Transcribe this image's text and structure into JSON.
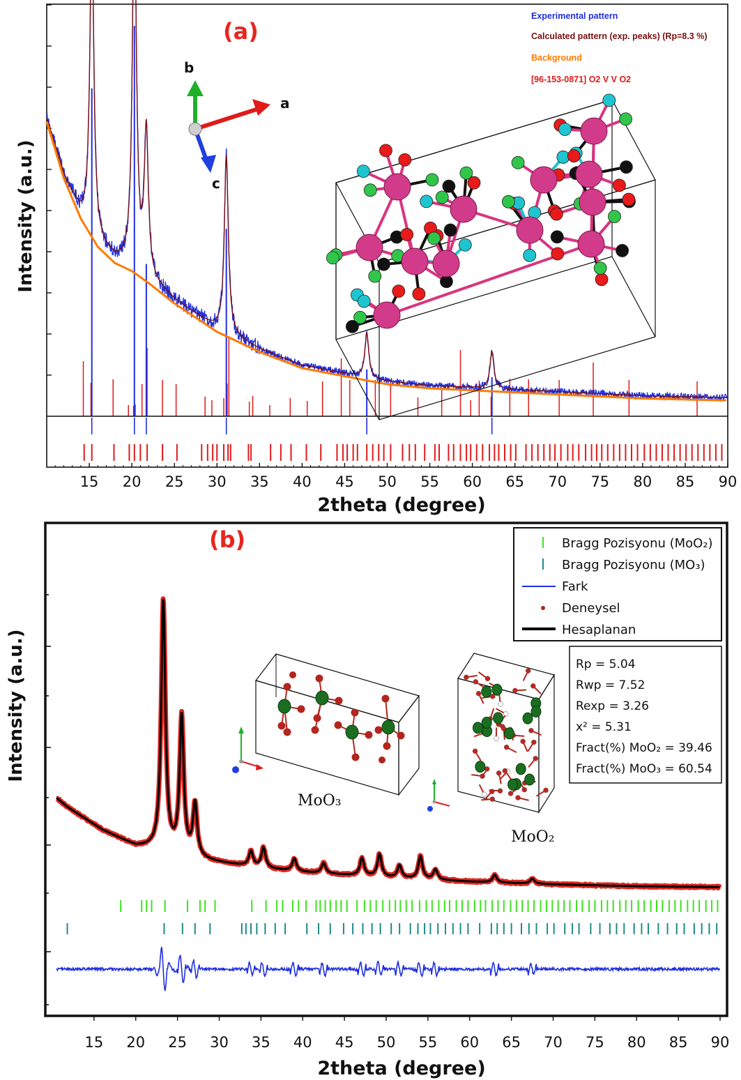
{
  "chart_data": [
    {
      "type": "line",
      "panel_label": "(a)",
      "xlabel": "2theta (degree)",
      "ylabel": "Intensity (a.u.)",
      "xlim": [
        10,
        90
      ],
      "x_ticks": [
        15,
        20,
        25,
        30,
        35,
        40,
        45,
        50,
        55,
        60,
        65,
        70,
        75,
        80,
        85,
        90
      ],
      "legend_position": "top-right",
      "legend": [
        {
          "label": "Experimental pattern",
          "color": "#1f2fe0"
        },
        {
          "label": "Calculated pattern (exp. peaks) (Rp=8.3 %)",
          "color": "#7a1010"
        },
        {
          "label": "Background",
          "color": "#ff7a00"
        },
        {
          "label": "[96-153-0871] O2 V V O2",
          "color": "#e01a1a"
        }
      ],
      "peaks": [
        {
          "x": 15.3,
          "relative_intensity": 0.84
        },
        {
          "x": 20.3,
          "relative_intensity": 1.0
        },
        {
          "x": 21.7,
          "relative_intensity": 0.39
        },
        {
          "x": 31.1,
          "relative_intensity": 0.48
        },
        {
          "x": 47.6,
          "relative_intensity": 0.12
        },
        {
          "x": 62.3,
          "relative_intensity": 0.1
        }
      ],
      "background": [
        [
          10,
          0.71
        ],
        [
          12,
          0.57
        ],
        [
          14,
          0.47
        ],
        [
          16,
          0.4
        ],
        [
          18,
          0.36
        ],
        [
          20,
          0.34
        ],
        [
          22,
          0.31
        ],
        [
          25,
          0.26
        ],
        [
          30,
          0.19
        ],
        [
          35,
          0.14
        ],
        [
          40,
          0.1
        ],
        [
          45,
          0.08
        ],
        [
          50,
          0.06
        ],
        [
          55,
          0.05
        ],
        [
          60,
          0.045
        ],
        [
          70,
          0.035
        ],
        [
          80,
          0.025
        ],
        [
          90,
          0.02
        ]
      ],
      "reference_lines_x": [
        14.3,
        15.2,
        17.8,
        19.6,
        20.2,
        20.4,
        21.2,
        21.8,
        23.6,
        25.2,
        28.6,
        29.4,
        30.8,
        31.2,
        31.4,
        33.8,
        34.2,
        36.2,
        38.6,
        40.6,
        42.4,
        44.6,
        45.6,
        47.6,
        48.6,
        50.4,
        53.6,
        56.4,
        58.6,
        59.8,
        60.8,
        62.2,
        64.4,
        66.6,
        70.2,
        74.2,
        78.4,
        86.4
      ],
      "bragg_ticks_x": [
        14.4,
        15.3,
        17.9,
        19.7,
        20.3,
        21.0,
        21.8,
        23.6,
        25.3,
        28.2,
        28.9,
        29.5,
        30.0,
        30.8,
        31.3,
        31.6,
        33.7,
        34.0,
        36.3,
        37.5,
        38.7,
        40.5,
        42.2,
        44.1,
        44.8,
        45.3,
        46.0,
        46.5,
        47.6,
        48.3,
        49.0,
        49.6,
        50.4,
        51.8,
        52.6,
        53.3,
        54.4,
        55.6,
        56.1,
        57.2,
        57.8,
        58.6,
        59.3,
        59.8,
        60.5,
        61.2,
        62.0,
        62.6,
        63.1,
        63.8,
        64.5,
        65.1,
        66.3,
        67.0,
        67.7,
        68.4,
        69.1,
        69.7,
        70.4,
        71.2,
        71.8,
        72.5,
        73.3,
        74.0,
        74.6,
        75.2,
        75.9,
        76.6,
        77.3,
        78.0,
        78.7,
        79.4,
        80.2,
        80.9,
        81.6,
        82.3,
        83.0,
        83.7,
        84.4,
        85.1,
        85.8,
        86.5,
        87.2,
        87.9,
        88.6,
        89.3
      ],
      "annotations": [
        "a",
        "b",
        "c"
      ]
    },
    {
      "type": "line",
      "panel_label": "(b)",
      "xlabel": "2theta (degree)",
      "ylabel": "Intensity (a.u.)",
      "xlim": [
        10,
        90
      ],
      "x_ticks": [
        15,
        20,
        25,
        30,
        35,
        40,
        45,
        50,
        55,
        60,
        65,
        70,
        75,
        80,
        85,
        90
      ],
      "legend_position": "top-right",
      "legend": [
        {
          "label": "Bragg Pozisyonu (MoO₂)",
          "color": "#3de21f",
          "marker": "tick"
        },
        {
          "label": "Bragg Pozisyonu (MO₃)",
          "color": "#1e8a8a",
          "marker": "tick"
        },
        {
          "label": "Fark",
          "color": "#1f2fe0",
          "marker": "line"
        },
        {
          "label": "Deneysel",
          "color": "#b3261e",
          "marker": "dot"
        },
        {
          "label": "Hesaplanan",
          "color": "#000000",
          "marker": "thick-line"
        }
      ],
      "stats": [
        "Rp = 5.04",
        "Rwp = 7.52",
        "Rexp = 3.26",
        "x² = 5.31",
        "Fract(%) MoO₂ = 39.46",
        "Fract(%) MoO₃ = 60.54"
      ],
      "structure_labels": [
        "MoO₃",
        "MoO₂"
      ],
      "peaks": [
        {
          "x": 23.3,
          "relative_intensity": 1.0
        },
        {
          "x": 25.5,
          "relative_intensity": 0.55
        },
        {
          "x": 27.1,
          "relative_intensity": 0.21
        },
        {
          "x": 33.8,
          "relative_intensity": 0.06
        },
        {
          "x": 35.3,
          "relative_intensity": 0.08
        },
        {
          "x": 39.0,
          "relative_intensity": 0.05
        },
        {
          "x": 42.5,
          "relative_intensity": 0.04
        },
        {
          "x": 47.1,
          "relative_intensity": 0.07
        },
        {
          "x": 49.2,
          "relative_intensity": 0.09
        },
        {
          "x": 51.6,
          "relative_intensity": 0.05
        },
        {
          "x": 54.1,
          "relative_intensity": 0.09
        },
        {
          "x": 55.9,
          "relative_intensity": 0.04
        },
        {
          "x": 63.0,
          "relative_intensity": 0.03
        },
        {
          "x": 67.5,
          "relative_intensity": 0.02
        }
      ],
      "background": [
        [
          10,
          0.37
        ],
        [
          12,
          0.32
        ],
        [
          14,
          0.28
        ],
        [
          16,
          0.24
        ],
        [
          18,
          0.21
        ],
        [
          20,
          0.18
        ],
        [
          22,
          0.17
        ],
        [
          25,
          0.145
        ],
        [
          30,
          0.12
        ],
        [
          35,
          0.1
        ],
        [
          40,
          0.085
        ],
        [
          45,
          0.075
        ],
        [
          50,
          0.065
        ],
        [
          55,
          0.058
        ],
        [
          60,
          0.05
        ],
        [
          70,
          0.04
        ],
        [
          80,
          0.033
        ],
        [
          90,
          0.03
        ]
      ],
      "bragg_ticks_moo2_x": [
        18.2,
        20.7,
        21.3,
        21.9,
        23.5,
        26.2,
        27.7,
        28.3,
        29.5,
        33.9,
        35.6,
        36.9,
        37.6,
        38.8,
        39.5,
        40.4,
        41.6,
        42.1,
        42.7,
        43.3,
        44.0,
        44.6,
        45.3,
        46.5,
        47.4,
        48.1,
        48.8,
        49.6,
        50.4,
        51.1,
        51.7,
        52.4,
        53.1,
        54.0,
        54.8,
        55.5,
        56.3,
        57.0,
        57.6,
        58.4,
        59.1,
        59.8,
        60.6,
        61.3,
        61.9,
        62.7,
        63.4,
        64.1,
        64.9,
        65.6,
        66.3,
        67.0,
        67.7,
        68.5,
        69.2,
        69.9,
        70.6,
        71.3,
        72.0,
        72.8,
        73.5,
        74.3,
        75.0,
        75.8,
        76.5,
        77.2,
        78.0,
        78.7,
        79.4,
        80.2,
        80.9,
        81.7,
        82.4,
        83.1,
        83.9,
        84.6,
        85.3,
        86.1,
        86.8,
        87.5,
        88.3,
        89.0,
        89.7
      ],
      "bragg_ticks_moo3_x": [
        11.8,
        23.4,
        25.6,
        27.1,
        28.9,
        32.7,
        33.2,
        33.8,
        34.5,
        35.5,
        36.7,
        37.9,
        40.5,
        41.9,
        43.3,
        44.9,
        46.0,
        47.2,
        48.3,
        49.3,
        50.6,
        51.6,
        52.9,
        53.8,
        54.6,
        55.3,
        56.2,
        57.1,
        58.0,
        58.9,
        59.8,
        61.2,
        62.6,
        63.3,
        64.1,
        65.0,
        66.2,
        67.1,
        68.0,
        69.3,
        70.1,
        71.4,
        72.3,
        73.1,
        74.5,
        75.6,
        76.8,
        77.6,
        78.5,
        79.7,
        80.6,
        81.4,
        82.6,
        83.7,
        84.8,
        85.7,
        86.9,
        87.8,
        88.7,
        89.6
      ]
    }
  ]
}
